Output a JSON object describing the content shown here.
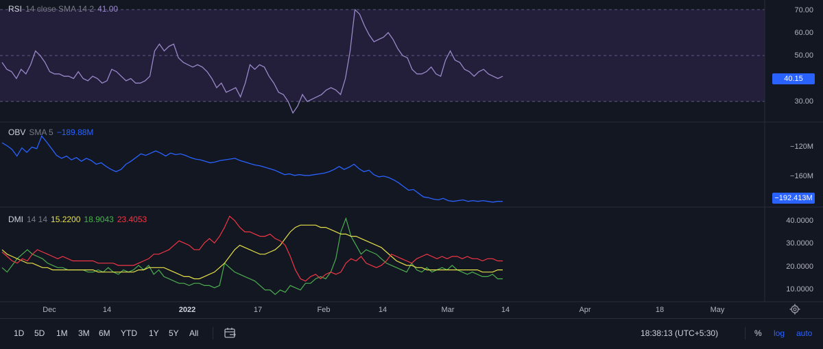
{
  "colors": {
    "background": "#131722",
    "rsi_line": "#9a89c9",
    "rsi_band": "#2a2442",
    "obv_line": "#2962ff",
    "dmi_plus": "#4caf50",
    "dmi_minus": "#f23645",
    "dmi_adx": "#e6e14a"
  },
  "rsi": {
    "title": "RSI",
    "args": "14 close SMA 14 2",
    "value": "41.00",
    "scale": [
      "70.00",
      "60.00",
      "50.00",
      "30.00"
    ],
    "current_tag": "40.15"
  },
  "obv": {
    "title": "OBV",
    "args": "SMA 5",
    "value": "−189.88M",
    "scale": [
      "−120M",
      "−160M"
    ],
    "current_tag": "−192.413M"
  },
  "dmi": {
    "title": "DMI",
    "args": "14 14",
    "plus_value": "15.2200",
    "adx_value": "18.9043",
    "minus_value": "23.4053",
    "scale": [
      "40.0000",
      "30.0000",
      "20.0000",
      "10.0000"
    ]
  },
  "time_axis": [
    "Dec",
    "14",
    "2022",
    "17",
    "Feb",
    "14",
    "Mar",
    "14",
    "Apr",
    "18",
    "May"
  ],
  "bottom_bar": {
    "ranges": [
      "1D",
      "5D",
      "1M",
      "3M",
      "6M",
      "YTD",
      "1Y",
      "5Y",
      "All"
    ],
    "clock": "18:38:13 (UTC+5:30)",
    "percent": "%",
    "log": "log",
    "auto": "auto"
  },
  "icons": {
    "goto": "goto-date-icon",
    "settings": "gear-icon"
  },
  "chart_data": [
    {
      "type": "line",
      "title": "RSI 14 close SMA 14 2",
      "series": [
        {
          "name": "RSI",
          "values": [
            47,
            44,
            43,
            40,
            44,
            42,
            46,
            52,
            50,
            47,
            43,
            42,
            42,
            41,
            41,
            40,
            43,
            40,
            39,
            41,
            40,
            38,
            39,
            44,
            43,
            41,
            39,
            40,
            38,
            38,
            39,
            41,
            52,
            55,
            52,
            54,
            55,
            49,
            47,
            46,
            45,
            46,
            45,
            43,
            40,
            36,
            38,
            34,
            35,
            36,
            32,
            38,
            46,
            44,
            46,
            45,
            41,
            38,
            34,
            33,
            30,
            25,
            28,
            33,
            30,
            31,
            32,
            33,
            35,
            36,
            35,
            33,
            40,
            52,
            70,
            68,
            63,
            59,
            56,
            57,
            58,
            60,
            57,
            53,
            50,
            49,
            44,
            42,
            42,
            43,
            45,
            42,
            41,
            48,
            52,
            48,
            47,
            44,
            43,
            41,
            43,
            44,
            42,
            41,
            40,
            41
          ]
        }
      ],
      "ylim": [
        27,
        72
      ],
      "bands": [
        30,
        50,
        70
      ]
    },
    {
      "type": "line",
      "title": "OBV SMA 5",
      "series": [
        {
          "name": "OBV",
          "values": [
            -113,
            -117,
            -122,
            -131,
            -120,
            -126,
            -119,
            -121,
            -104,
            -112,
            -121,
            -130,
            -134,
            -131,
            -136,
            -133,
            -138,
            -134,
            -137,
            -142,
            -140,
            -145,
            -149,
            -152,
            -149,
            -142,
            -138,
            -133,
            -128,
            -130,
            -127,
            -124,
            -127,
            -131,
            -127,
            -129,
            -128,
            -130,
            -133,
            -135,
            -136,
            -138,
            -140,
            -139,
            -137,
            -136,
            -135,
            -134,
            -137,
            -139,
            -141,
            -143,
            -144,
            -146,
            -148,
            -150,
            -153,
            -156,
            -155,
            -157,
            -156,
            -157,
            -157,
            -156,
            -155,
            -154,
            -152,
            -149,
            -145,
            -149,
            -146,
            -142,
            -148,
            -152,
            -150,
            -156,
            -159,
            -158,
            -160,
            -163,
            -167,
            -172,
            -177,
            -176,
            -181,
            -186,
            -187,
            -189,
            -190,
            -188,
            -191,
            -192,
            -191,
            -190,
            -192,
            -191,
            -192,
            -191,
            -192,
            -193,
            -192,
            -192
          ]
        }
      ],
      "ylim": [
        -196,
        -99
      ]
    },
    {
      "type": "line",
      "title": "DMI 14 14",
      "x_points": 100,
      "series": [
        {
          "values": [
            20,
            18,
            21,
            24,
            26,
            28,
            26,
            25,
            24,
            22,
            21,
            20,
            20,
            19,
            19,
            19,
            19,
            18,
            18,
            19,
            18,
            20,
            18,
            17,
            19,
            18,
            19,
            21,
            19,
            21,
            17,
            19,
            16,
            15,
            14,
            13,
            13,
            12,
            13,
            13,
            12,
            12,
            11,
            12,
            22,
            20,
            18,
            17,
            16,
            15,
            14,
            12,
            10,
            10,
            8,
            10,
            9,
            12,
            11,
            10,
            13,
            13,
            15,
            16,
            15,
            18,
            24,
            36,
            42,
            34,
            30,
            26,
            28,
            27,
            26,
            24,
            22,
            21,
            20,
            19,
            18,
            22,
            19,
            18,
            20,
            18,
            19,
            20,
            19,
            21,
            19,
            18,
            17,
            18,
            17,
            16,
            16,
            17,
            15,
            15
          ]
        },
        {
          "values": [
            28,
            26,
            25,
            24,
            23,
            22,
            22,
            21,
            20,
            20,
            19,
            19,
            19,
            19,
            19,
            19,
            19,
            19,
            19,
            18,
            18,
            18,
            18,
            18,
            18,
            18,
            18,
            19,
            19,
            20,
            20,
            20,
            20,
            19,
            18,
            17,
            16,
            16,
            15,
            15,
            16,
            17,
            18,
            20,
            22,
            25,
            28,
            30,
            29,
            28,
            27,
            26,
            26,
            27,
            28,
            30,
            33,
            36,
            38,
            39,
            39,
            39,
            39,
            38,
            38,
            37,
            36,
            35,
            35,
            34,
            34,
            33,
            32,
            31,
            30,
            29,
            27,
            25,
            23,
            22,
            21,
            21,
            20,
            20,
            19,
            19,
            19,
            19,
            19,
            19,
            19,
            19,
            19,
            19,
            19,
            18,
            18,
            18,
            19,
            19
          ]
        },
        {
          "values": [
            27,
            25,
            23,
            22,
            24,
            23,
            26,
            28,
            27,
            26,
            25,
            24,
            25,
            24,
            23,
            23,
            23,
            23,
            23,
            22,
            22,
            22,
            22,
            21,
            21,
            21,
            21,
            22,
            23,
            24,
            26,
            26,
            27,
            28,
            30,
            32,
            31,
            30,
            28,
            28,
            31,
            33,
            31,
            34,
            38,
            43,
            41,
            38,
            36,
            36,
            35,
            34,
            34,
            35,
            33,
            32,
            30,
            25,
            19,
            15,
            14,
            16,
            17,
            15,
            17,
            18,
            17,
            18,
            22,
            24,
            23,
            25,
            22,
            21,
            20,
            21,
            23,
            26,
            25,
            24,
            23,
            22,
            24,
            25,
            26,
            25,
            24,
            25,
            24,
            25,
            25,
            24,
            25,
            24,
            24,
            23,
            24,
            24,
            23,
            23
          ]
        }
      ],
      "ylim": [
        6,
        44
      ]
    }
  ]
}
